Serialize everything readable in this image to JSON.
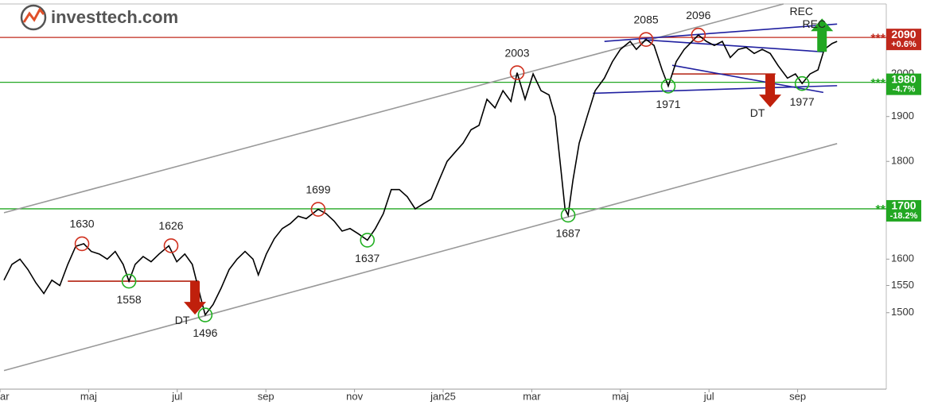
{
  "chart_data": {
    "type": "line",
    "logo": "investtech.com",
    "log_scale": true,
    "xlim": [
      0,
      20
    ],
    "ylim": [
      1368,
      2176
    ],
    "xticks": [
      {
        "value": 0,
        "label": "ar"
      },
      {
        "value": 2,
        "label": "maj"
      },
      {
        "value": 4,
        "label": "jul"
      },
      {
        "value": 6,
        "label": "sep"
      },
      {
        "value": 8,
        "label": "nov"
      },
      {
        "value": 10,
        "label": "jan25"
      },
      {
        "value": 12,
        "label": "mar"
      },
      {
        "value": 14,
        "label": "maj"
      },
      {
        "value": 16,
        "label": "jul"
      },
      {
        "value": 18,
        "label": "sep"
      }
    ],
    "yticks": [
      1500,
      1550,
      1600,
      1700,
      1800,
      1900,
      2000,
      2100
    ],
    "series": [
      {
        "color": "#000000",
        "x": [
          0.09,
          0.27,
          0.45,
          0.63,
          0.81,
          0.99,
          1.17,
          1.35,
          1.53,
          1.71,
          1.89,
          2.06,
          2.24,
          2.42,
          2.6,
          2.78,
          2.91,
          3.05,
          3.23,
          3.41,
          3.59,
          3.81,
          3.99,
          4.17,
          4.34,
          4.52,
          4.63,
          4.81,
          4.99,
          5.17,
          5.35,
          5.53,
          5.71,
          5.83,
          6.01,
          6.19,
          6.37,
          6.55,
          6.73,
          6.91,
          7.18,
          7.36,
          7.54,
          7.72,
          7.9,
          8.08,
          8.29,
          8.47,
          8.65,
          8.83,
          9.01,
          9.19,
          9.37,
          9.55,
          9.73,
          9.91,
          10.09,
          10.27,
          10.45,
          10.63,
          10.81,
          10.99,
          11.17,
          11.35,
          11.53,
          11.67,
          11.85,
          12.03,
          12.21,
          12.39,
          12.53,
          12.66,
          12.75,
          12.82,
          12.93,
          13.07,
          13.25,
          13.43,
          13.64,
          13.82,
          14.0,
          14.22,
          14.36,
          14.58,
          14.76,
          14.94,
          15.08,
          15.26,
          15.44,
          15.62,
          15.76,
          15.94,
          16.12,
          16.3,
          16.48,
          16.66,
          16.84,
          17.02,
          17.2,
          17.38,
          17.56,
          17.77,
          17.95,
          18.1,
          18.28,
          18.46,
          18.6,
          18.78,
          18.89
        ],
        "values": [
          1560,
          1590,
          1600,
          1580,
          1555,
          1535,
          1560,
          1550,
          1590,
          1625,
          1630,
          1615,
          1610,
          1600,
          1615,
          1590,
          1558,
          1590,
          1605,
          1595,
          1610,
          1626,
          1595,
          1610,
          1590,
          1530,
          1496,
          1515,
          1545,
          1580,
          1600,
          1615,
          1600,
          1570,
          1610,
          1640,
          1660,
          1670,
          1685,
          1680,
          1699,
          1690,
          1675,
          1655,
          1660,
          1650,
          1637,
          1660,
          1690,
          1740,
          1740,
          1725,
          1700,
          1710,
          1720,
          1760,
          1800,
          1820,
          1840,
          1870,
          1880,
          1940,
          1920,
          1960,
          1935,
          2003,
          1940,
          2000,
          1960,
          1950,
          1900,
          1780,
          1700,
          1687,
          1760,
          1840,
          1900,
          1960,
          1990,
          2030,
          2060,
          2080,
          2060,
          2085,
          2070,
          2010,
          1971,
          2030,
          2060,
          2080,
          2096,
          2080,
          2070,
          2080,
          2040,
          2060,
          2065,
          2050,
          2060,
          2050,
          2020,
          1990,
          2000,
          1977,
          2000,
          2010,
          2060,
          2075,
          2080
        ]
      }
    ],
    "extrema": [
      {
        "x": 1.85,
        "value": 1630,
        "kind": "peak",
        "color": "#d0301e"
      },
      {
        "x": 3.86,
        "value": 1626,
        "kind": "peak",
        "color": "#d0301e"
      },
      {
        "x": 7.18,
        "value": 1699,
        "kind": "peak",
        "color": "#d0301e"
      },
      {
        "x": 11.67,
        "value": 2003,
        "kind": "peak",
        "color": "#d0301e"
      },
      {
        "x": 14.58,
        "value": 2085,
        "kind": "peak",
        "color": "#d0301e"
      },
      {
        "x": 15.76,
        "value": 2096,
        "kind": "peak",
        "color": "#d0301e"
      },
      {
        "x": 2.91,
        "value": 1558,
        "kind": "trough",
        "color": "#22b022"
      },
      {
        "x": 4.63,
        "value": 1496,
        "kind": "trough",
        "color": "#22b022"
      },
      {
        "x": 8.29,
        "value": 1637,
        "kind": "trough",
        "color": "#22b022"
      },
      {
        "x": 12.82,
        "value": 1687,
        "kind": "trough",
        "color": "#22b022"
      },
      {
        "x": 15.08,
        "value": 1971,
        "kind": "trough",
        "color": "#22b022"
      },
      {
        "x": 18.1,
        "value": 1977,
        "kind": "trough",
        "color": "#22b022"
      }
    ],
    "trendlines": [
      {
        "color": "#999999",
        "points": [
          [
            0.09,
            1692
          ],
          [
            17.68,
            2176
          ]
        ]
      },
      {
        "color": "#999999",
        "points": [
          [
            0.09,
            1399
          ],
          [
            18.89,
            1839
          ]
        ]
      },
      {
        "color": "#b22010",
        "points": [
          [
            1.53,
            1558
          ],
          [
            4.49,
            1558
          ]
        ]
      },
      {
        "color": "#b22010",
        "points": [
          [
            15.17,
            2000
          ],
          [
            17.5,
            2000
          ]
        ]
      },
      {
        "color": "#2020a0",
        "points": [
          [
            13.38,
            1954
          ],
          [
            18.89,
            1972
          ]
        ]
      },
      {
        "color": "#2020a0",
        "points": [
          [
            13.64,
            2080
          ],
          [
            18.89,
            2124
          ]
        ]
      },
      {
        "color": "#2020a0",
        "points": [
          [
            14.54,
            2084
          ],
          [
            18.58,
            2054
          ]
        ]
      },
      {
        "color": "#2020a0",
        "points": [
          [
            15.17,
            2021
          ],
          [
            18.58,
            1956
          ]
        ]
      }
    ],
    "levels": [
      {
        "value": 2090,
        "stars": "***",
        "change": "+0.6%",
        "color": "#c0281c"
      },
      {
        "value": 1980,
        "stars": "***",
        "change": "-4.7%",
        "color": "#22a722"
      },
      {
        "value": 1700,
        "stars": "**",
        "change": "-18.2%",
        "color": "#22a722"
      }
    ],
    "signals": [
      {
        "labels": [
          "DT"
        ],
        "x": 4.4,
        "value": 1558,
        "direction": "down",
        "color": "#c0200c"
      },
      {
        "labels": [
          "DT"
        ],
        "x": 17.38,
        "value": 2000,
        "direction": "down",
        "color": "#c0200c"
      },
      {
        "labels": [
          "REC",
          "REC"
        ],
        "x": 18.55,
        "value": 2054,
        "direction": "up",
        "color": "#22a722"
      }
    ]
  }
}
